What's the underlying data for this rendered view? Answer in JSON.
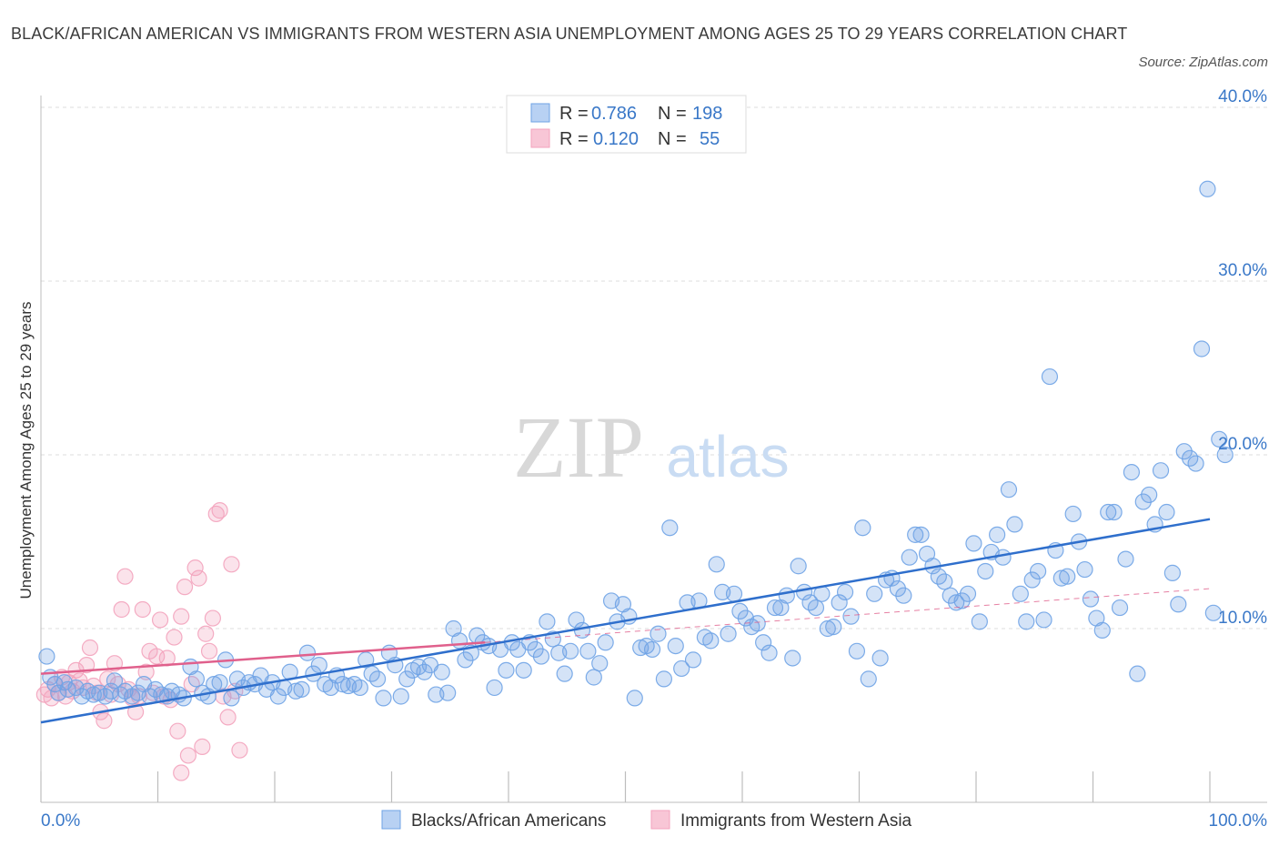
{
  "title": "BLACK/AFRICAN AMERICAN VS IMMIGRANTS FROM WESTERN ASIA UNEMPLOYMENT AMONG AGES 25 TO 29 YEARS CORRELATION CHART",
  "source": "Source: ZipAtlas.com",
  "watermark": {
    "zip": "ZIP",
    "atlas": "atlas"
  },
  "legend": {
    "r_label": "R =",
    "n_label": "N =",
    "series": [
      {
        "r": "0.786",
        "n": "198"
      },
      {
        "r": "0.120",
        "n": "55"
      }
    ]
  },
  "chart_data": {
    "type": "scatter",
    "title": "BLACK/AFRICAN AMERICAN VS IMMIGRANTS FROM WESTERN ASIA UNEMPLOYMENT AMONG AGES 25 TO 29 YEARS CORRELATION CHART",
    "xlabel": "",
    "ylabel": "Unemployment Among Ages 25 to 29 years",
    "xlim": [
      0,
      100
    ],
    "ylim": [
      0,
      40
    ],
    "x_tick_labels": [
      "0.0%",
      "100.0%"
    ],
    "y_ticks": [
      10,
      20,
      30,
      40
    ],
    "y_tick_labels": [
      "10.0%",
      "20.0%",
      "30.0%",
      "40.0%"
    ],
    "grid": true,
    "legend_position": "top-center",
    "series": [
      {
        "name": "Blacks/African Americans",
        "color": "#6fa3e6",
        "line_color": "#2f6fcc",
        "trend": {
          "x": [
            0,
            100
          ],
          "y": [
            4.6,
            16.3
          ]
        },
        "points": [
          [
            0.5,
            8.4
          ],
          [
            0.8,
            7.2
          ],
          [
            1.2,
            6.8
          ],
          [
            1.5,
            6.3
          ],
          [
            2.0,
            6.9
          ],
          [
            2.3,
            6.5
          ],
          [
            3.0,
            6.6
          ],
          [
            3.5,
            6.1
          ],
          [
            4.0,
            6.4
          ],
          [
            4.5,
            6.2
          ],
          [
            5.0,
            6.3
          ],
          [
            5.5,
            6.1
          ],
          [
            6.0,
            6.4
          ],
          [
            6.3,
            7.0
          ],
          [
            6.8,
            6.2
          ],
          [
            7.2,
            6.4
          ],
          [
            7.8,
            6.1
          ],
          [
            8.3,
            6.3
          ],
          [
            8.8,
            6.8
          ],
          [
            9.3,
            6.1
          ],
          [
            9.8,
            6.5
          ],
          [
            10.3,
            6.2
          ],
          [
            10.8,
            6.1
          ],
          [
            11.2,
            6.4
          ],
          [
            11.8,
            6.2
          ],
          [
            12.2,
            6.0
          ],
          [
            12.8,
            7.8
          ],
          [
            13.3,
            7.1
          ],
          [
            13.8,
            6.3
          ],
          [
            14.3,
            6.1
          ],
          [
            14.8,
            6.8
          ],
          [
            15.3,
            6.9
          ],
          [
            15.8,
            8.2
          ],
          [
            16.3,
            6.0
          ],
          [
            16.8,
            7.1
          ],
          [
            17.3,
            6.6
          ],
          [
            17.8,
            6.9
          ],
          [
            18.3,
            6.8
          ],
          [
            18.8,
            7.3
          ],
          [
            19.3,
            6.5
          ],
          [
            19.8,
            6.9
          ],
          [
            20.3,
            6.1
          ],
          [
            20.8,
            6.6
          ],
          [
            21.3,
            7.5
          ],
          [
            21.8,
            6.4
          ],
          [
            22.3,
            6.5
          ],
          [
            22.8,
            8.6
          ],
          [
            23.3,
            7.4
          ],
          [
            23.8,
            7.9
          ],
          [
            24.3,
            6.8
          ],
          [
            24.8,
            6.6
          ],
          [
            25.3,
            7.3
          ],
          [
            25.8,
            6.8
          ],
          [
            26.3,
            6.7
          ],
          [
            26.8,
            6.8
          ],
          [
            27.3,
            6.6
          ],
          [
            27.8,
            8.2
          ],
          [
            28.3,
            7.4
          ],
          [
            28.8,
            7.1
          ],
          [
            29.3,
            6.0
          ],
          [
            29.8,
            8.6
          ],
          [
            30.3,
            7.9
          ],
          [
            30.8,
            6.1
          ],
          [
            31.3,
            7.1
          ],
          [
            31.8,
            7.6
          ],
          [
            32.3,
            7.8
          ],
          [
            32.8,
            7.5
          ],
          [
            33.3,
            7.9
          ],
          [
            33.8,
            6.2
          ],
          [
            34.3,
            7.5
          ],
          [
            34.8,
            6.3
          ],
          [
            35.3,
            10.0
          ],
          [
            35.8,
            9.3
          ],
          [
            36.3,
            8.2
          ],
          [
            36.8,
            8.6
          ],
          [
            37.3,
            9.6
          ],
          [
            37.8,
            9.2
          ],
          [
            38.3,
            9.0
          ],
          [
            38.8,
            6.6
          ],
          [
            39.3,
            8.8
          ],
          [
            39.8,
            7.6
          ],
          [
            40.3,
            9.2
          ],
          [
            40.8,
            8.8
          ],
          [
            41.3,
            7.6
          ],
          [
            41.8,
            9.2
          ],
          [
            42.3,
            8.8
          ],
          [
            42.8,
            8.4
          ],
          [
            43.3,
            10.4
          ],
          [
            43.8,
            9.4
          ],
          [
            44.3,
            8.6
          ],
          [
            44.8,
            7.4
          ],
          [
            45.3,
            8.7
          ],
          [
            45.8,
            10.5
          ],
          [
            46.3,
            9.9
          ],
          [
            46.8,
            8.7
          ],
          [
            47.3,
            7.2
          ],
          [
            47.8,
            8.0
          ],
          [
            48.3,
            9.2
          ],
          [
            48.8,
            11.6
          ],
          [
            49.3,
            10.4
          ],
          [
            49.8,
            11.4
          ],
          [
            50.3,
            10.7
          ],
          [
            50.8,
            6.0
          ],
          [
            51.3,
            8.9
          ],
          [
            51.8,
            9.0
          ],
          [
            52.3,
            8.8
          ],
          [
            52.8,
            9.7
          ],
          [
            53.3,
            7.1
          ],
          [
            53.8,
            15.8
          ],
          [
            54.3,
            9.0
          ],
          [
            54.8,
            7.7
          ],
          [
            55.3,
            11.5
          ],
          [
            55.8,
            8.2
          ],
          [
            56.3,
            11.6
          ],
          [
            56.8,
            9.5
          ],
          [
            57.3,
            9.3
          ],
          [
            57.8,
            13.7
          ],
          [
            58.3,
            12.1
          ],
          [
            58.8,
            9.7
          ],
          [
            59.3,
            12.0
          ],
          [
            59.8,
            11.0
          ],
          [
            60.3,
            10.6
          ],
          [
            60.8,
            10.1
          ],
          [
            61.3,
            10.3
          ],
          [
            61.8,
            9.2
          ],
          [
            62.3,
            8.6
          ],
          [
            62.8,
            11.2
          ],
          [
            63.3,
            11.2
          ],
          [
            63.8,
            11.9
          ],
          [
            64.3,
            8.3
          ],
          [
            64.8,
            13.6
          ],
          [
            65.3,
            12.1
          ],
          [
            65.8,
            11.5
          ],
          [
            66.3,
            11.2
          ],
          [
            66.8,
            12.0
          ],
          [
            67.3,
            10.0
          ],
          [
            67.8,
            10.1
          ],
          [
            68.3,
            11.5
          ],
          [
            68.8,
            12.1
          ],
          [
            69.3,
            10.7
          ],
          [
            69.8,
            8.7
          ],
          [
            70.3,
            15.8
          ],
          [
            70.8,
            7.1
          ],
          [
            71.3,
            12.0
          ],
          [
            71.8,
            8.3
          ],
          [
            72.3,
            12.8
          ],
          [
            72.8,
            12.9
          ],
          [
            73.3,
            12.3
          ],
          [
            73.8,
            11.9
          ],
          [
            74.3,
            14.1
          ],
          [
            74.8,
            15.4
          ],
          [
            75.3,
            15.4
          ],
          [
            75.8,
            14.3
          ],
          [
            76.3,
            13.6
          ],
          [
            76.8,
            13.0
          ],
          [
            77.3,
            12.7
          ],
          [
            77.8,
            11.9
          ],
          [
            78.3,
            11.5
          ],
          [
            78.8,
            11.6
          ],
          [
            79.3,
            12.0
          ],
          [
            79.8,
            14.9
          ],
          [
            80.3,
            10.4
          ],
          [
            80.8,
            13.3
          ],
          [
            81.3,
            14.4
          ],
          [
            81.8,
            15.4
          ],
          [
            82.3,
            14.1
          ],
          [
            82.8,
            18.0
          ],
          [
            83.3,
            16.0
          ],
          [
            83.8,
            12.0
          ],
          [
            84.3,
            10.4
          ],
          [
            84.8,
            12.8
          ],
          [
            85.3,
            13.3
          ],
          [
            85.8,
            10.5
          ],
          [
            86.3,
            24.5
          ],
          [
            86.8,
            14.5
          ],
          [
            87.3,
            12.9
          ],
          [
            87.8,
            13.0
          ],
          [
            88.3,
            16.6
          ],
          [
            88.8,
            15.0
          ],
          [
            89.3,
            13.4
          ],
          [
            89.8,
            11.7
          ],
          [
            90.3,
            10.6
          ],
          [
            90.8,
            9.9
          ],
          [
            91.3,
            16.7
          ],
          [
            91.8,
            16.7
          ],
          [
            92.3,
            11.2
          ],
          [
            92.8,
            14.0
          ],
          [
            93.3,
            19.0
          ],
          [
            93.8,
            7.4
          ],
          [
            94.3,
            17.3
          ],
          [
            94.8,
            17.7
          ],
          [
            95.3,
            16.0
          ],
          [
            95.8,
            19.1
          ],
          [
            96.3,
            16.7
          ],
          [
            96.8,
            13.2
          ],
          [
            97.3,
            11.4
          ],
          [
            97.8,
            20.2
          ],
          [
            98.3,
            19.8
          ],
          [
            98.8,
            19.5
          ],
          [
            99.3,
            26.1
          ],
          [
            99.8,
            35.3
          ],
          [
            100.3,
            10.9
          ],
          [
            100.8,
            20.9
          ],
          [
            101.3,
            20.0
          ]
        ]
      },
      {
        "name": "Immigrants from Western Asia",
        "color": "#f3a3bd",
        "line_color": "#e0608c",
        "trend": {
          "x": [
            0,
            38
          ],
          "y": [
            7.4,
            9.2
          ]
        },
        "trend_extension": {
          "x": [
            38,
            100
          ],
          "y": [
            9.2,
            12.3
          ]
        },
        "points": [
          [
            0.3,
            6.2
          ],
          [
            0.6,
            6.5
          ],
          [
            0.9,
            6.0
          ],
          [
            1.2,
            6.8
          ],
          [
            1.5,
            6.3
          ],
          [
            1.8,
            7.2
          ],
          [
            2.1,
            6.1
          ],
          [
            2.4,
            6.9
          ],
          [
            2.7,
            6.4
          ],
          [
            3.0,
            7.6
          ],
          [
            3.3,
            7.0
          ],
          [
            3.6,
            6.6
          ],
          [
            3.9,
            7.9
          ],
          [
            4.2,
            8.9
          ],
          [
            4.5,
            6.7
          ],
          [
            4.8,
            6.3
          ],
          [
            5.1,
            5.2
          ],
          [
            5.4,
            4.7
          ],
          [
            5.7,
            7.1
          ],
          [
            6.0,
            6.2
          ],
          [
            6.3,
            8.0
          ],
          [
            6.6,
            6.8
          ],
          [
            6.9,
            11.1
          ],
          [
            7.2,
            13.0
          ],
          [
            7.5,
            6.5
          ],
          [
            7.8,
            6.0
          ],
          [
            8.1,
            5.2
          ],
          [
            8.4,
            6.1
          ],
          [
            8.7,
            11.1
          ],
          [
            9.0,
            7.5
          ],
          [
            9.3,
            8.7
          ],
          [
            9.6,
            6.3
          ],
          [
            9.9,
            8.4
          ],
          [
            10.2,
            10.5
          ],
          [
            10.5,
            6.1
          ],
          [
            10.8,
            8.3
          ],
          [
            11.1,
            5.9
          ],
          [
            11.4,
            9.5
          ],
          [
            11.7,
            4.1
          ],
          [
            12.0,
            10.7
          ],
          [
            12.3,
            12.4
          ],
          [
            12.6,
            2.7
          ],
          [
            12.9,
            6.8
          ],
          [
            13.2,
            13.5
          ],
          [
            13.5,
            12.9
          ],
          [
            13.8,
            3.2
          ],
          [
            14.1,
            9.7
          ],
          [
            14.4,
            8.7
          ],
          [
            14.7,
            10.6
          ],
          [
            15.0,
            16.6
          ],
          [
            15.3,
            16.8
          ],
          [
            15.6,
            6.1
          ],
          [
            16.0,
            4.9
          ],
          [
            16.3,
            13.7
          ],
          [
            16.6,
            6.4
          ],
          [
            17.0,
            3.0
          ],
          [
            12.0,
            1.7
          ]
        ]
      }
    ]
  }
}
